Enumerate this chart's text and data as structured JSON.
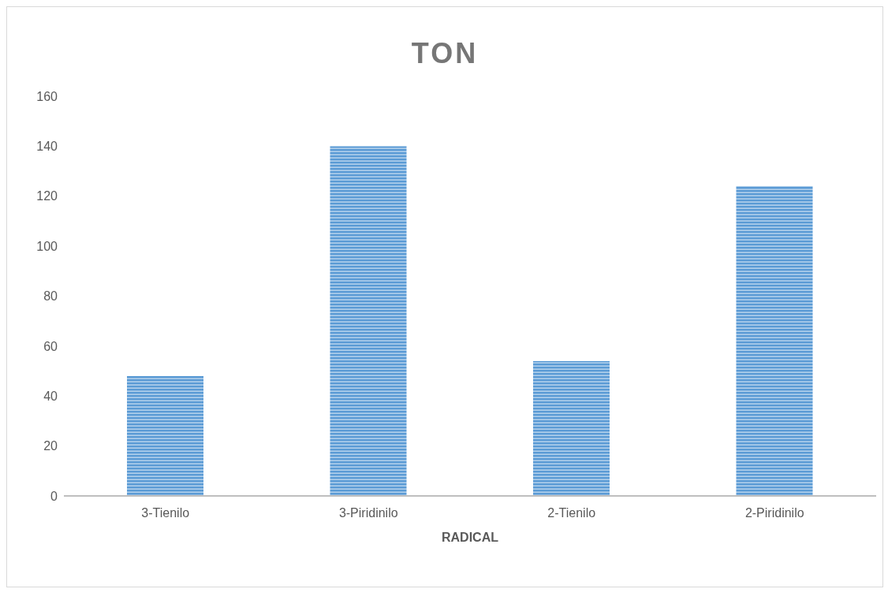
{
  "chart_data": {
    "type": "bar",
    "title": "TON",
    "xlabel": "RADICAL",
    "categories": [
      "3-Tienilo",
      "3-Piridinilo",
      "2-Tienilo",
      "2-Piridinilo"
    ],
    "values": [
      48,
      140,
      54,
      124
    ],
    "color": "#5b9bd5",
    "ylim": [
      0,
      160
    ],
    "yticks": [
      0,
      20,
      40,
      60,
      80,
      100,
      120,
      140,
      160
    ],
    "grid": false,
    "legend": false
  }
}
